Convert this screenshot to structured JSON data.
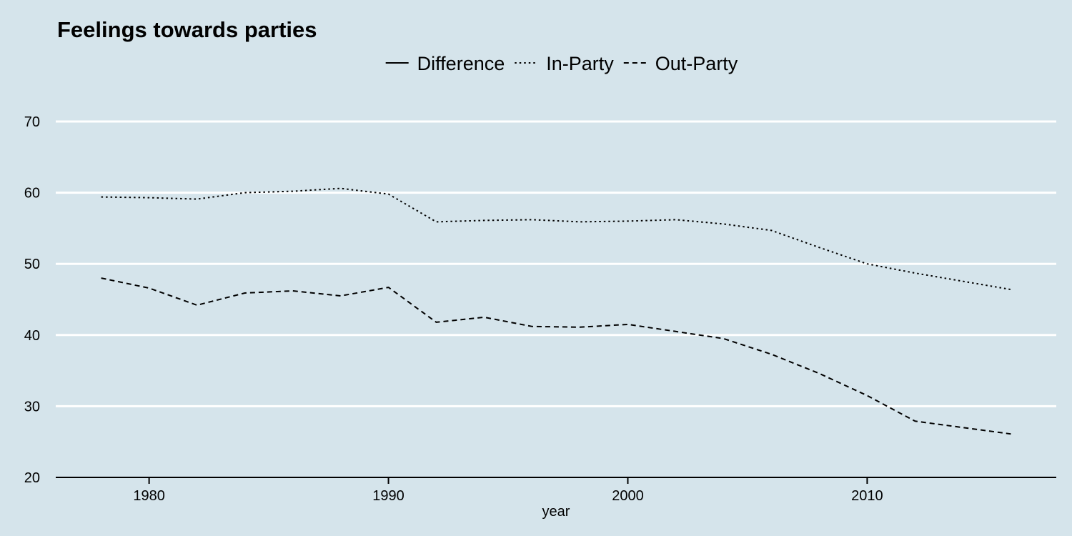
{
  "chart_data": {
    "type": "line",
    "title": "Feelings towards parties",
    "xlabel": "year",
    "ylabel": "",
    "xlim": [
      1976.1,
      2017.9
    ],
    "ylim": [
      20,
      70
    ],
    "xticks": [
      1980,
      1990,
      2000,
      2010
    ],
    "yticks": [
      20,
      30,
      40,
      50,
      60,
      70
    ],
    "grid": "horizontal major lines",
    "legend_position": "top",
    "legend": [
      "Difference",
      "In-Party",
      "Out-Party"
    ],
    "series": [
      {
        "name": "Difference",
        "style": "solid",
        "x": [],
        "values": []
      },
      {
        "name": "In-Party",
        "style": "dotted",
        "x": [
          1978,
          1980,
          1982,
          1984,
          1986,
          1988,
          1990,
          1992,
          1994,
          1996,
          1998,
          2000,
          2002,
          2004,
          2006,
          2008,
          2010,
          2012,
          2016
        ],
        "values": [
          59.4,
          59.3,
          59.1,
          60.0,
          60.2,
          60.6,
          59.8,
          55.9,
          56.1,
          56.2,
          55.9,
          56.0,
          56.2,
          55.6,
          54.7,
          52.3,
          50.0,
          48.7,
          46.4
        ]
      },
      {
        "name": "Out-Party",
        "style": "dashed",
        "x": [
          1978,
          1980,
          1982,
          1984,
          1986,
          1988,
          1990,
          1992,
          1994,
          1996,
          1998,
          2000,
          2002,
          2004,
          2006,
          2008,
          2010,
          2012,
          2016
        ],
        "values": [
          48.0,
          46.6,
          44.2,
          45.9,
          46.2,
          45.5,
          46.7,
          41.8,
          42.5,
          41.2,
          41.1,
          41.5,
          40.5,
          39.5,
          37.3,
          34.6,
          31.5,
          27.9,
          26.1
        ]
      }
    ]
  }
}
